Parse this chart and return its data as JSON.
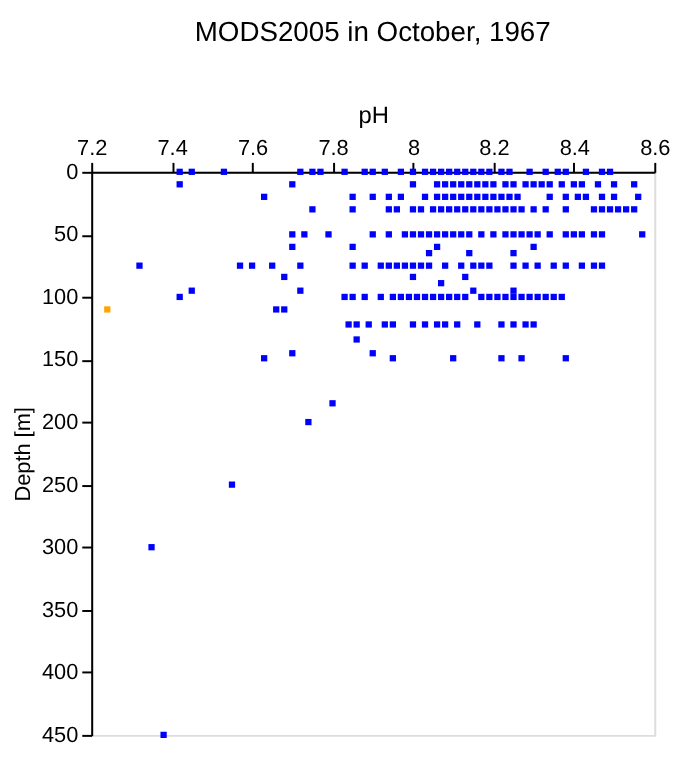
{
  "chart_data": {
    "type": "scatter",
    "title": "MODS2005 in October, 1967",
    "xlabel": "pH",
    "ylabel": "Depth [m]",
    "xlim": [
      7.2,
      8.6
    ],
    "xticks": [
      7.2,
      7.4,
      7.6,
      7.8,
      8,
      8.2,
      8.4,
      8.6
    ],
    "ylim": [
      450,
      0
    ],
    "yticks": [
      0,
      50,
      100,
      150,
      200,
      250,
      300,
      350,
      400,
      450
    ],
    "grid": false,
    "legend": false,
    "marker": "square",
    "series": [
      {
        "color": "#0000ff",
        "x": [
          7.42,
          7.45,
          7.53,
          7.72,
          7.75,
          7.77,
          7.83,
          7.88,
          7.9,
          7.93,
          7.97,
          8.0,
          8.03,
          8.05,
          8.07,
          8.09,
          8.11,
          8.13,
          8.15,
          8.17,
          8.19,
          8.22,
          8.24,
          8.29,
          8.33,
          8.36,
          8.38,
          8.43,
          8.47,
          8.49,
          7.42,
          7.7,
          8.0,
          8.06,
          8.08,
          8.1,
          8.12,
          8.14,
          8.16,
          8.18,
          8.2,
          8.23,
          8.25,
          8.28,
          8.3,
          8.32,
          8.34,
          8.37,
          8.4,
          8.42,
          8.46,
          8.5,
          8.55,
          7.63,
          7.85,
          7.9,
          7.94,
          7.97,
          8.03,
          8.06,
          8.08,
          8.1,
          8.12,
          8.14,
          8.16,
          8.18,
          8.2,
          8.22,
          8.24,
          8.26,
          8.34,
          8.38,
          8.41,
          8.43,
          8.47,
          8.5,
          8.56,
          7.75,
          7.85,
          7.94,
          7.96,
          8.0,
          8.02,
          8.05,
          8.07,
          8.09,
          8.11,
          8.13,
          8.15,
          8.17,
          8.19,
          8.21,
          8.23,
          8.25,
          8.27,
          8.3,
          8.33,
          8.38,
          8.45,
          8.47,
          8.49,
          8.51,
          8.53,
          8.55,
          7.7,
          7.73,
          7.79,
          7.9,
          7.94,
          7.98,
          8.0,
          8.02,
          8.04,
          8.06,
          8.08,
          8.1,
          8.12,
          8.14,
          8.17,
          8.2,
          8.23,
          8.25,
          8.27,
          8.29,
          8.31,
          8.34,
          8.38,
          8.4,
          8.42,
          8.45,
          8.47,
          8.57,
          7.7,
          7.85,
          8.06,
          8.3,
          8.04,
          8.14,
          8.25,
          7.32,
          7.57,
          7.6,
          7.65,
          7.72,
          7.85,
          7.88,
          7.92,
          7.94,
          7.96,
          7.98,
          8.0,
          8.02,
          8.04,
          8.08,
          8.12,
          8.15,
          8.17,
          8.19,
          8.25,
          8.28,
          8.31,
          8.35,
          8.38,
          8.42,
          8.45,
          8.47,
          7.68,
          8.0,
          8.13,
          8.07,
          7.45,
          7.72,
          8.15,
          8.25,
          7.42,
          7.83,
          7.85,
          7.88,
          7.92,
          7.95,
          7.97,
          7.99,
          8.01,
          8.03,
          8.05,
          8.07,
          8.09,
          8.11,
          8.13,
          8.17,
          8.19,
          8.21,
          8.23,
          8.25,
          8.27,
          8.29,
          8.31,
          8.33,
          8.35,
          8.37,
          7.66,
          7.68,
          7.84,
          7.86,
          7.89,
          7.93,
          7.95,
          8.0,
          8.03,
          8.06,
          8.08,
          8.11,
          8.16,
          8.22,
          8.25,
          8.28,
          8.3,
          7.86,
          7.7,
          7.9,
          7.63,
          7.95,
          8.1,
          8.22,
          8.27,
          8.38,
          7.8,
          7.74,
          7.55,
          7.35,
          7.38
        ],
        "values": [
          0,
          0,
          0,
          0,
          0,
          0,
          0,
          0,
          0,
          0,
          0,
          0,
          0,
          0,
          0,
          0,
          0,
          0,
          0,
          0,
          0,
          0,
          0,
          0,
          0,
          0,
          0,
          0,
          0,
          0,
          10,
          10,
          10,
          10,
          10,
          10,
          10,
          10,
          10,
          10,
          10,
          10,
          10,
          10,
          10,
          10,
          10,
          10,
          10,
          10,
          10,
          10,
          10,
          20,
          20,
          20,
          20,
          20,
          20,
          20,
          20,
          20,
          20,
          20,
          20,
          20,
          20,
          20,
          20,
          20,
          20,
          20,
          20,
          20,
          20,
          20,
          20,
          30,
          30,
          30,
          30,
          30,
          30,
          30,
          30,
          30,
          30,
          30,
          30,
          30,
          30,
          30,
          30,
          30,
          30,
          30,
          30,
          30,
          30,
          30,
          30,
          30,
          30,
          30,
          50,
          50,
          50,
          50,
          50,
          50,
          50,
          50,
          50,
          50,
          50,
          50,
          50,
          50,
          50,
          50,
          50,
          50,
          50,
          50,
          50,
          50,
          50,
          50,
          50,
          50,
          50,
          50,
          60,
          60,
          60,
          60,
          65,
          65,
          65,
          75,
          75,
          75,
          75,
          75,
          75,
          75,
          75,
          75,
          75,
          75,
          75,
          75,
          75,
          75,
          75,
          75,
          75,
          75,
          75,
          75,
          75,
          75,
          75,
          75,
          75,
          75,
          84,
          84,
          84,
          89,
          95,
          95,
          95,
          95,
          100,
          100,
          100,
          100,
          100,
          100,
          100,
          100,
          100,
          100,
          100,
          100,
          100,
          100,
          100,
          100,
          100,
          100,
          100,
          100,
          100,
          100,
          100,
          100,
          100,
          100,
          110,
          110,
          122,
          122,
          122,
          122,
          122,
          122,
          122,
          122,
          122,
          122,
          122,
          122,
          122,
          122,
          122,
          134,
          145,
          145,
          149,
          149,
          149,
          149,
          149,
          149,
          185,
          200,
          250,
          300,
          450
        ]
      },
      {
        "color": "#ffa500",
        "x": [
          7.24
        ],
        "values": [
          110
        ]
      }
    ]
  }
}
